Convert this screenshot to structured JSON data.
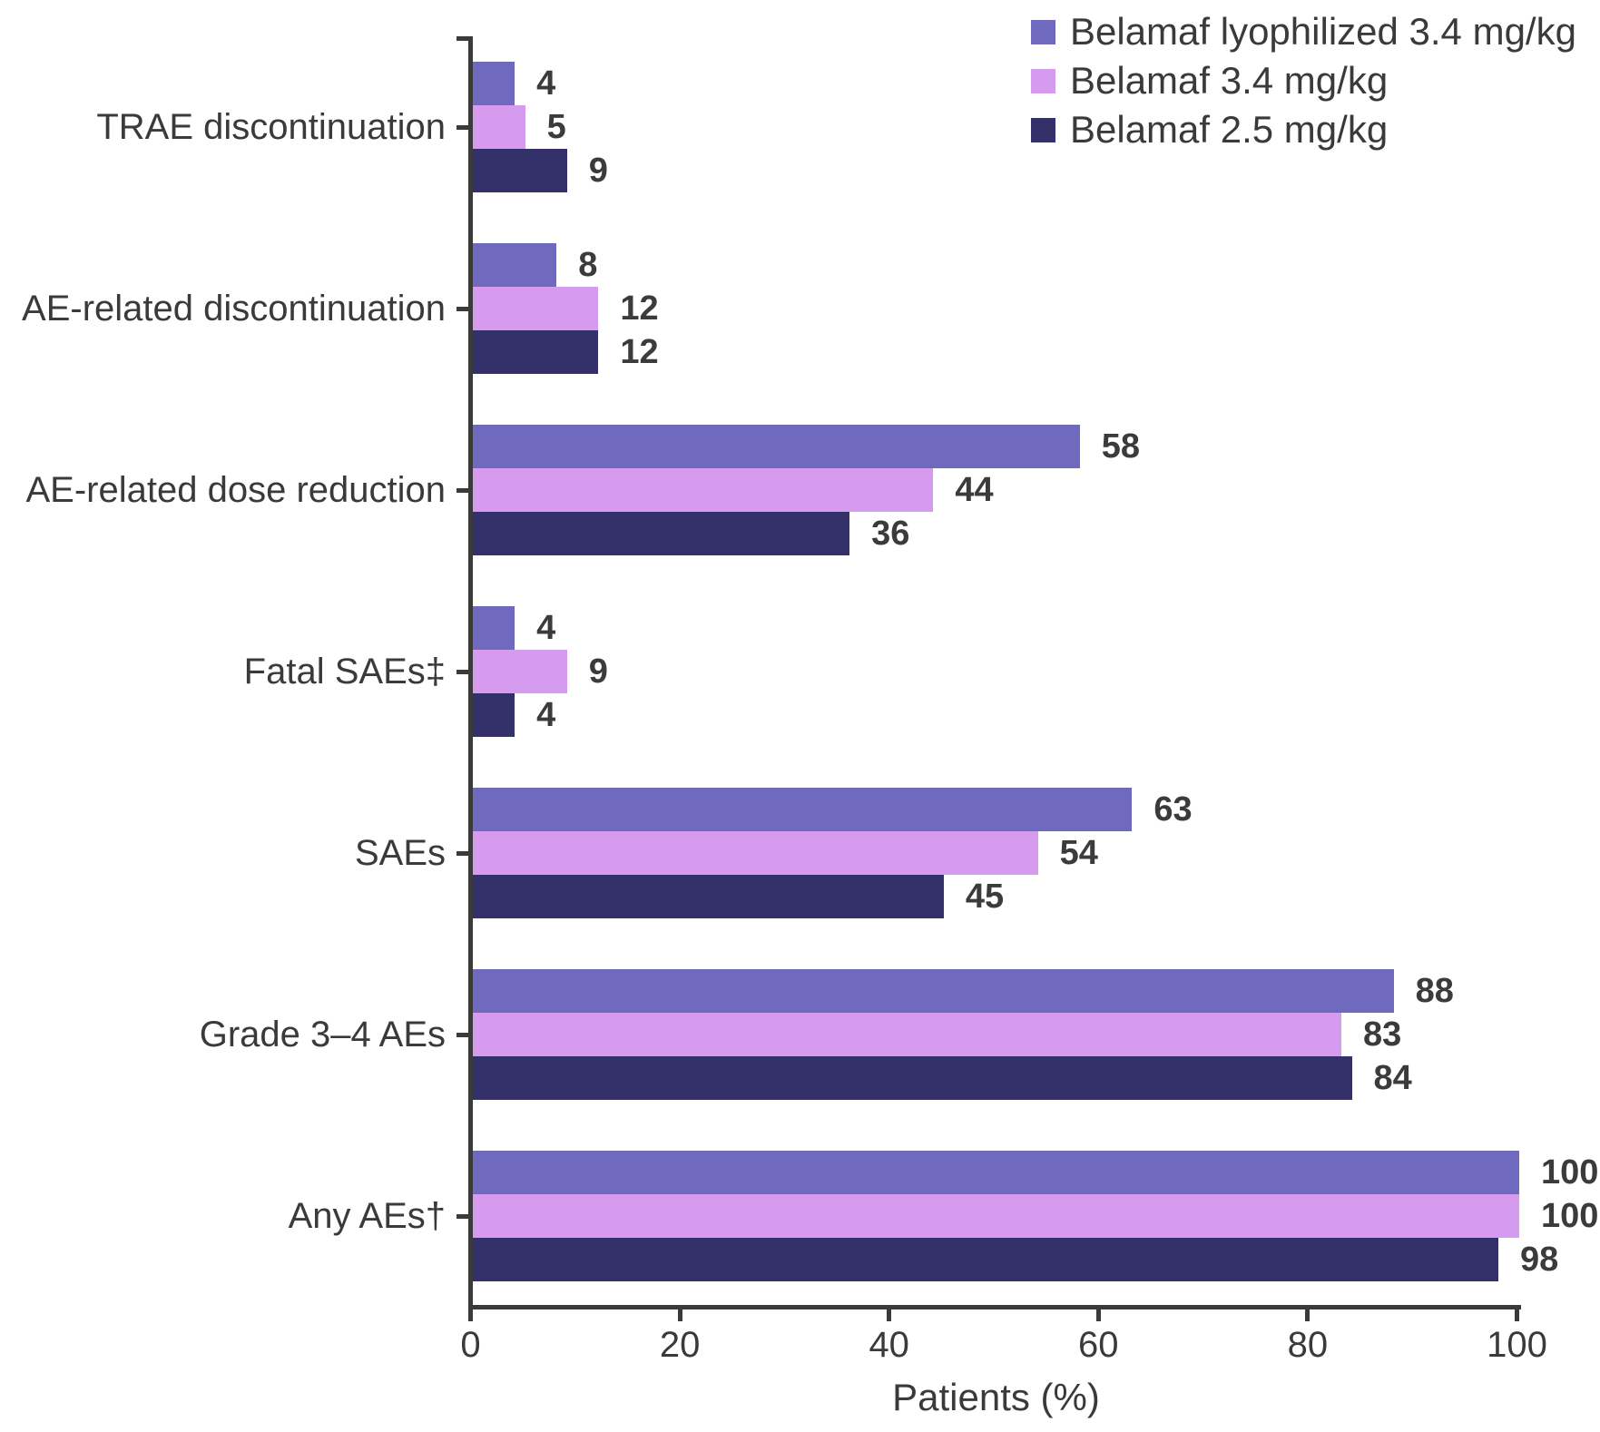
{
  "chart_data": {
    "type": "bar",
    "orientation": "horizontal",
    "title": "",
    "xlabel": "Patients (%)",
    "ylabel": "",
    "xlim": [
      0,
      100
    ],
    "xticks": [
      0,
      20,
      40,
      60,
      80,
      100
    ],
    "grid": false,
    "legend_position": "top-right",
    "bar_value_labels": true,
    "categories": [
      "TRAE discontinuation",
      "AE-related discontinuation",
      "AE-related dose reduction",
      "Fatal SAEs‡",
      "SAEs",
      "Grade 3–4 AEs",
      "Any AEs†"
    ],
    "series": [
      {
        "name": "Belamaf lyophilized 3.4 mg/kg",
        "color": "#6f6abe",
        "values": [
          4,
          8,
          58,
          4,
          63,
          88,
          100
        ]
      },
      {
        "name": "Belamaf 3.4 mg/kg",
        "color": "#d49bee",
        "values": [
          5,
          12,
          44,
          9,
          54,
          83,
          100
        ]
      },
      {
        "name": "Belamaf 2.5 mg/kg",
        "color": "#343069",
        "values": [
          9,
          12,
          36,
          4,
          45,
          84,
          98
        ]
      }
    ]
  },
  "colors": {
    "axis": "#3a3a3a",
    "text": "#3a3a3a",
    "value_label": "#3b3b3b",
    "background": "#ffffff"
  }
}
